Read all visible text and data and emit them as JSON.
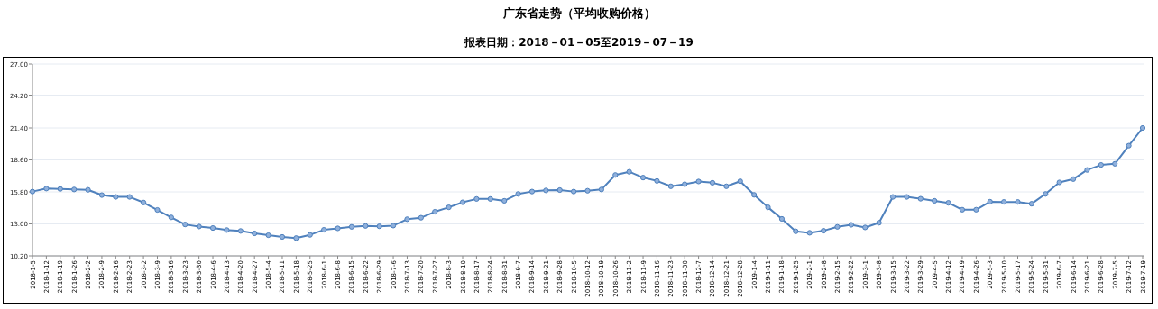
{
  "chart_data": {
    "type": "line",
    "title": "广东省走势（平均收购价格）",
    "subtitle": "报表日期：2018－01－05至2019－07－19",
    "categories": [
      "2018-1-5",
      "2018-1-12",
      "2018-1-19",
      "2018-1-26",
      "2018-2-2",
      "2018-2-9",
      "2018-2-16",
      "2018-2-23",
      "2018-3-2",
      "2018-3-9",
      "2018-3-16",
      "2018-3-23",
      "2018-3-30",
      "2018-4-6",
      "2018-4-13",
      "2018-4-20",
      "2018-4-27",
      "2018-5-4",
      "2018-5-11",
      "2018-5-18",
      "2018-5-25",
      "2018-6-1",
      "2018-6-8",
      "2018-6-15",
      "2018-6-22",
      "2018-6-29",
      "2018-7-6",
      "2018-7-13",
      "2018-7-20",
      "2018-7-27",
      "2018-8-3",
      "2018-8-10",
      "2018-8-17",
      "2018-8-24",
      "2018-8-31",
      "2018-9-7",
      "2018-9-14",
      "2018-9-21",
      "2018-9-28",
      "2018-10-5",
      "2018-10-12",
      "2018-10-19",
      "2018-10-26",
      "2018-11-2",
      "2018-11-9",
      "2018-11-16",
      "2018-11-23",
      "2018-11-30",
      "2018-12-7",
      "2018-12-14",
      "2018-12-21",
      "2018-12-28",
      "2019-1-4",
      "2019-1-11",
      "2019-1-18",
      "2019-1-25",
      "2019-2-1",
      "2019-2-8",
      "2019-2-15",
      "2019-2-22",
      "2019-3-1",
      "2019-3-8",
      "2019-3-15",
      "2019-3-22",
      "2019-3-29",
      "2019-4-5",
      "2019-4-12",
      "2019-4-19",
      "2019-4-26",
      "2019-5-3",
      "2019-5-10",
      "2019-5-17",
      "2019-5-24",
      "2019-5-31",
      "2019-6-7",
      "2019-6-14",
      "2019-6-21",
      "2019-6-28",
      "2019-7-5",
      "2019-7-12",
      "2019-7-19"
    ],
    "values": [
      15.83,
      16.09,
      16.06,
      16.01,
      15.98,
      15.52,
      15.36,
      15.36,
      14.87,
      14.22,
      13.57,
      12.95,
      12.77,
      12.64,
      12.46,
      12.38,
      12.17,
      12.01,
      11.86,
      11.76,
      12.04,
      12.48,
      12.61,
      12.74,
      12.82,
      12.79,
      12.85,
      13.41,
      13.54,
      14.06,
      14.45,
      14.89,
      15.18,
      15.18,
      15.02,
      15.62,
      15.83,
      15.93,
      15.96,
      15.83,
      15.9,
      16.01,
      17.28,
      17.56,
      17.05,
      16.76,
      16.29,
      16.47,
      16.71,
      16.6,
      16.29,
      16.73,
      15.54,
      14.45,
      13.44,
      12.35,
      12.22,
      12.4,
      12.74,
      12.92,
      12.69,
      13.1,
      15.36,
      15.36,
      15.2,
      15.02,
      14.84,
      14.24,
      14.24,
      14.94,
      14.92,
      14.92,
      14.76,
      15.62,
      16.63,
      16.92,
      17.72,
      18.16,
      18.26,
      19.85,
      21.4
    ],
    "color": "#4f81bd",
    "ylim": [
      10.2,
      27
    ],
    "yticks": [
      {
        "value": 10.2,
        "label": "10.20"
      },
      {
        "value": 13,
        "label": "13.00"
      },
      {
        "value": 15.8,
        "label": "15.80"
      },
      {
        "value": 18.6,
        "label": "18.60"
      },
      {
        "value": 21.4,
        "label": "21.40"
      },
      {
        "value": 24.2,
        "label": "24.20"
      },
      {
        "value": 27,
        "label": "27.00"
      }
    ],
    "grid": "y",
    "marker": "circle"
  }
}
